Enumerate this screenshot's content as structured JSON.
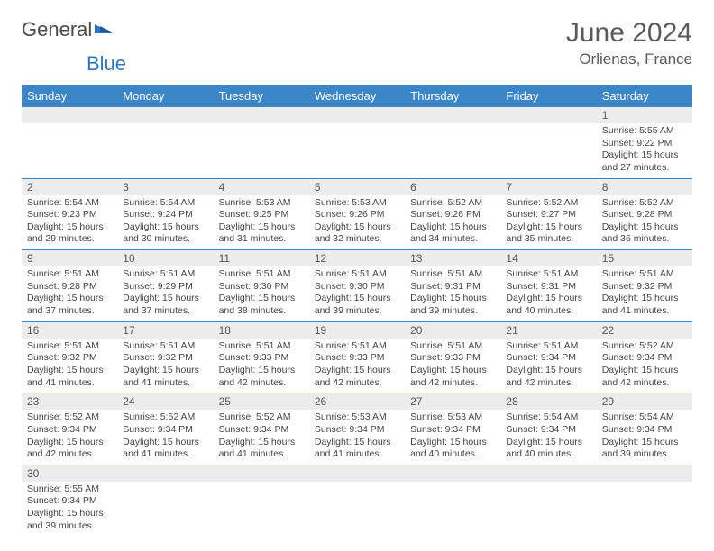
{
  "logo": {
    "general": "General",
    "blue": "Blue"
  },
  "header": {
    "monthTitle": "June 2024",
    "location": "Orlienas, France"
  },
  "colors": {
    "headerBg": "#3a86c8",
    "headerText": "#ffffff",
    "stripeBg": "#ececec",
    "ruleColor": "#3a86c8",
    "pageBg": "#ffffff",
    "textColor": "#444444"
  },
  "daysOfWeek": [
    "Sunday",
    "Monday",
    "Tuesday",
    "Wednesday",
    "Thursday",
    "Friday",
    "Saturday"
  ],
  "weeks": [
    [
      null,
      null,
      null,
      null,
      null,
      null,
      {
        "n": "1",
        "sr": "Sunrise: 5:55 AM",
        "ss": "Sunset: 9:22 PM",
        "d1": "Daylight: 15 hours",
        "d2": "and 27 minutes."
      }
    ],
    [
      {
        "n": "2",
        "sr": "Sunrise: 5:54 AM",
        "ss": "Sunset: 9:23 PM",
        "d1": "Daylight: 15 hours",
        "d2": "and 29 minutes."
      },
      {
        "n": "3",
        "sr": "Sunrise: 5:54 AM",
        "ss": "Sunset: 9:24 PM",
        "d1": "Daylight: 15 hours",
        "d2": "and 30 minutes."
      },
      {
        "n": "4",
        "sr": "Sunrise: 5:53 AM",
        "ss": "Sunset: 9:25 PM",
        "d1": "Daylight: 15 hours",
        "d2": "and 31 minutes."
      },
      {
        "n": "5",
        "sr": "Sunrise: 5:53 AM",
        "ss": "Sunset: 9:26 PM",
        "d1": "Daylight: 15 hours",
        "d2": "and 32 minutes."
      },
      {
        "n": "6",
        "sr": "Sunrise: 5:52 AM",
        "ss": "Sunset: 9:26 PM",
        "d1": "Daylight: 15 hours",
        "d2": "and 34 minutes."
      },
      {
        "n": "7",
        "sr": "Sunrise: 5:52 AM",
        "ss": "Sunset: 9:27 PM",
        "d1": "Daylight: 15 hours",
        "d2": "and 35 minutes."
      },
      {
        "n": "8",
        "sr": "Sunrise: 5:52 AM",
        "ss": "Sunset: 9:28 PM",
        "d1": "Daylight: 15 hours",
        "d2": "and 36 minutes."
      }
    ],
    [
      {
        "n": "9",
        "sr": "Sunrise: 5:51 AM",
        "ss": "Sunset: 9:28 PM",
        "d1": "Daylight: 15 hours",
        "d2": "and 37 minutes."
      },
      {
        "n": "10",
        "sr": "Sunrise: 5:51 AM",
        "ss": "Sunset: 9:29 PM",
        "d1": "Daylight: 15 hours",
        "d2": "and 37 minutes."
      },
      {
        "n": "11",
        "sr": "Sunrise: 5:51 AM",
        "ss": "Sunset: 9:30 PM",
        "d1": "Daylight: 15 hours",
        "d2": "and 38 minutes."
      },
      {
        "n": "12",
        "sr": "Sunrise: 5:51 AM",
        "ss": "Sunset: 9:30 PM",
        "d1": "Daylight: 15 hours",
        "d2": "and 39 minutes."
      },
      {
        "n": "13",
        "sr": "Sunrise: 5:51 AM",
        "ss": "Sunset: 9:31 PM",
        "d1": "Daylight: 15 hours",
        "d2": "and 39 minutes."
      },
      {
        "n": "14",
        "sr": "Sunrise: 5:51 AM",
        "ss": "Sunset: 9:31 PM",
        "d1": "Daylight: 15 hours",
        "d2": "and 40 minutes."
      },
      {
        "n": "15",
        "sr": "Sunrise: 5:51 AM",
        "ss": "Sunset: 9:32 PM",
        "d1": "Daylight: 15 hours",
        "d2": "and 41 minutes."
      }
    ],
    [
      {
        "n": "16",
        "sr": "Sunrise: 5:51 AM",
        "ss": "Sunset: 9:32 PM",
        "d1": "Daylight: 15 hours",
        "d2": "and 41 minutes."
      },
      {
        "n": "17",
        "sr": "Sunrise: 5:51 AM",
        "ss": "Sunset: 9:32 PM",
        "d1": "Daylight: 15 hours",
        "d2": "and 41 minutes."
      },
      {
        "n": "18",
        "sr": "Sunrise: 5:51 AM",
        "ss": "Sunset: 9:33 PM",
        "d1": "Daylight: 15 hours",
        "d2": "and 42 minutes."
      },
      {
        "n": "19",
        "sr": "Sunrise: 5:51 AM",
        "ss": "Sunset: 9:33 PM",
        "d1": "Daylight: 15 hours",
        "d2": "and 42 minutes."
      },
      {
        "n": "20",
        "sr": "Sunrise: 5:51 AM",
        "ss": "Sunset: 9:33 PM",
        "d1": "Daylight: 15 hours",
        "d2": "and 42 minutes."
      },
      {
        "n": "21",
        "sr": "Sunrise: 5:51 AM",
        "ss": "Sunset: 9:34 PM",
        "d1": "Daylight: 15 hours",
        "d2": "and 42 minutes."
      },
      {
        "n": "22",
        "sr": "Sunrise: 5:52 AM",
        "ss": "Sunset: 9:34 PM",
        "d1": "Daylight: 15 hours",
        "d2": "and 42 minutes."
      }
    ],
    [
      {
        "n": "23",
        "sr": "Sunrise: 5:52 AM",
        "ss": "Sunset: 9:34 PM",
        "d1": "Daylight: 15 hours",
        "d2": "and 42 minutes."
      },
      {
        "n": "24",
        "sr": "Sunrise: 5:52 AM",
        "ss": "Sunset: 9:34 PM",
        "d1": "Daylight: 15 hours",
        "d2": "and 41 minutes."
      },
      {
        "n": "25",
        "sr": "Sunrise: 5:52 AM",
        "ss": "Sunset: 9:34 PM",
        "d1": "Daylight: 15 hours",
        "d2": "and 41 minutes."
      },
      {
        "n": "26",
        "sr": "Sunrise: 5:53 AM",
        "ss": "Sunset: 9:34 PM",
        "d1": "Daylight: 15 hours",
        "d2": "and 41 minutes."
      },
      {
        "n": "27",
        "sr": "Sunrise: 5:53 AM",
        "ss": "Sunset: 9:34 PM",
        "d1": "Daylight: 15 hours",
        "d2": "and 40 minutes."
      },
      {
        "n": "28",
        "sr": "Sunrise: 5:54 AM",
        "ss": "Sunset: 9:34 PM",
        "d1": "Daylight: 15 hours",
        "d2": "and 40 minutes."
      },
      {
        "n": "29",
        "sr": "Sunrise: 5:54 AM",
        "ss": "Sunset: 9:34 PM",
        "d1": "Daylight: 15 hours",
        "d2": "and 39 minutes."
      }
    ],
    [
      {
        "n": "30",
        "sr": "Sunrise: 5:55 AM",
        "ss": "Sunset: 9:34 PM",
        "d1": "Daylight: 15 hours",
        "d2": "and 39 minutes."
      },
      null,
      null,
      null,
      null,
      null,
      null
    ]
  ]
}
